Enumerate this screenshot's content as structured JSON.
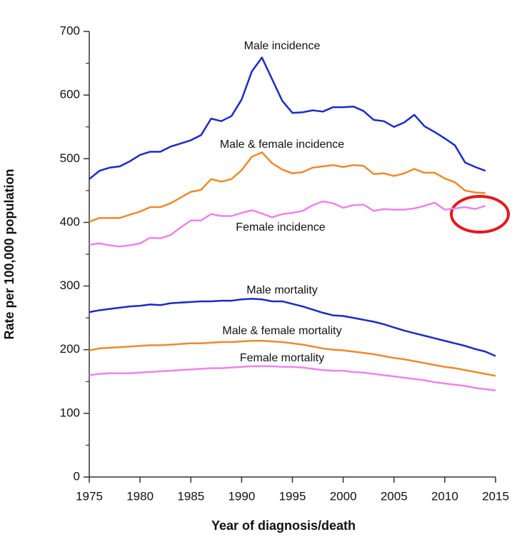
{
  "chart_data": {
    "type": "line",
    "x_label": "Year of diagnosis/death",
    "y_label": "Rate per 100,000 population",
    "x": [
      1975,
      1976,
      1977,
      1978,
      1979,
      1980,
      1981,
      1982,
      1983,
      1984,
      1985,
      1986,
      1987,
      1988,
      1989,
      1990,
      1991,
      1992,
      1993,
      1994,
      1995,
      1996,
      1997,
      1998,
      1999,
      2000,
      2001,
      2002,
      2003,
      2004,
      2005,
      2006,
      2007,
      2008,
      2009,
      2010,
      2011,
      2012,
      2013,
      2014,
      2015
    ],
    "xlim": [
      1975,
      2015
    ],
    "xticks": [
      1975,
      1980,
      1985,
      1990,
      1995,
      2000,
      2005,
      2010,
      2015
    ],
    "ylim": [
      0,
      700
    ],
    "yticks": [
      0,
      100,
      200,
      300,
      400,
      500,
      600,
      700
    ],
    "series": [
      {
        "name": "Male incidence",
        "color": "#1a2bc8",
        "values": [
          468,
          481,
          486,
          488,
          496,
          506,
          511,
          511,
          519,
          524,
          529,
          537,
          563,
          559,
          567,
          593,
          637,
          659,
          625,
          591,
          572,
          573,
          576,
          574,
          581,
          581,
          582,
          575,
          561,
          559,
          550,
          557,
          569,
          551,
          542,
          532,
          521,
          494,
          487,
          481,
          null
        ]
      },
      {
        "name": "Male & female incidence",
        "color": "#f0892a",
        "values": [
          401,
          407,
          407,
          407,
          412,
          417,
          424,
          424,
          430,
          439,
          448,
          451,
          468,
          464,
          468,
          482,
          503,
          510,
          493,
          483,
          477,
          479,
          486,
          488,
          490,
          487,
          490,
          489,
          476,
          477,
          473,
          477,
          484,
          478,
          478,
          469,
          463,
          450,
          447,
          446,
          null
        ]
      },
      {
        "name": "Female incidence",
        "color": "#ee82ee",
        "values": [
          365,
          367,
          364,
          362,
          364,
          367,
          376,
          375,
          380,
          392,
          403,
          403,
          413,
          410,
          410,
          415,
          419,
          414,
          408,
          413,
          415,
          418,
          427,
          433,
          430,
          423,
          427,
          428,
          418,
          421,
          420,
          420,
          422,
          426,
          431,
          420,
          422,
          424,
          421,
          426,
          null
        ]
      },
      {
        "name": "Male mortality",
        "color": "#1a2bc8",
        "values": [
          259,
          262,
          264,
          266,
          268,
          269,
          271,
          270,
          273,
          274,
          275,
          276,
          276,
          277,
          277,
          279,
          280,
          279,
          276,
          276,
          272,
          268,
          263,
          258,
          254,
          253,
          250,
          247,
          244,
          240,
          235,
          230,
          226,
          222,
          218,
          214,
          210,
          206,
          201,
          197,
          190
        ]
      },
      {
        "name": "Male & female mortality",
        "color": "#f0892a",
        "values": [
          199,
          202,
          203,
          204,
          205,
          206,
          207,
          207,
          208,
          209,
          210,
          210,
          211,
          212,
          212,
          213,
          214,
          214,
          213,
          212,
          210,
          208,
          205,
          202,
          200,
          199,
          197,
          195,
          193,
          190,
          187,
          185,
          182,
          179,
          176,
          173,
          171,
          168,
          165,
          162,
          159
        ]
      },
      {
        "name": "Female mortality",
        "color": "#ee82ee",
        "values": [
          160,
          162,
          163,
          163,
          163,
          164,
          165,
          166,
          167,
          168,
          169,
          170,
          171,
          171,
          172,
          173,
          174,
          174,
          174,
          173,
          173,
          172,
          170,
          168,
          167,
          167,
          165,
          164,
          162,
          160,
          158,
          156,
          154,
          152,
          149,
          147,
          145,
          143,
          140,
          138,
          136
        ]
      }
    ]
  }
}
